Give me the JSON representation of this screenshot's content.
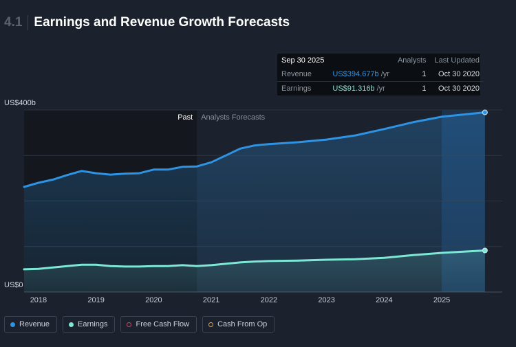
{
  "section": "4.1",
  "chart_data": {
    "type": "line",
    "title": "Earnings and Revenue Growth Forecasts",
    "x": [
      2017.75,
      2018,
      2018.25,
      2018.5,
      2018.75,
      2019,
      2019.25,
      2019.5,
      2019.75,
      2020,
      2020.25,
      2020.5,
      2020.75,
      2021,
      2021.25,
      2021.5,
      2021.75,
      2022,
      2022.5,
      2023,
      2023.5,
      2024,
      2024.5,
      2025,
      2025.75
    ],
    "xlim": [
      2017.75,
      2026.05
    ],
    "xticks": [
      2018,
      2019,
      2020,
      2021,
      2022,
      2023,
      2024,
      2025
    ],
    "ylim": [
      0,
      400
    ],
    "yticks": [
      {
        "value": 0,
        "label": "US$0"
      },
      {
        "value": 100,
        "label": null
      },
      {
        "value": 200,
        "label": null
      },
      {
        "value": 300,
        "label": null
      },
      {
        "value": 400,
        "label": "US$400b"
      }
    ],
    "grid": true,
    "past_label": "Past",
    "forecast_label": "Analysts Forecasts",
    "past_end": 2020.75,
    "series": [
      {
        "name": "Revenue",
        "color": "#2f93e4",
        "values": [
          231,
          240,
          247,
          257,
          266,
          261,
          258,
          260,
          261,
          269,
          269,
          275,
          276,
          285,
          300,
          315,
          322,
          325,
          329,
          335,
          344,
          358,
          373,
          385,
          394.677
        ]
      },
      {
        "name": "Earnings",
        "color": "#7ee8d6",
        "values": [
          50,
          51,
          54,
          57,
          60,
          60,
          57,
          56,
          56,
          57,
          57,
          59,
          57,
          59,
          62,
          65,
          67,
          68,
          69,
          71,
          72,
          75,
          81,
          86,
          91.316
        ]
      }
    ],
    "legend_extra": [
      {
        "name": "Free Cash Flow",
        "color": "#c8466e"
      },
      {
        "name": "Cash From Op",
        "color": "#e3a44a"
      }
    ],
    "tooltip": {
      "date": "Sep 30 2025",
      "columns": [
        "Analysts",
        "Last Updated"
      ],
      "rows": [
        {
          "name": "Revenue",
          "value": "US$394.677b",
          "unit": "/yr",
          "analysts": 1,
          "updated": "Oct 30 2020"
        },
        {
          "name": "Earnings",
          "value": "US$91.316b",
          "unit": "/yr",
          "analysts": 1,
          "updated": "Oct 30 2020"
        }
      ]
    }
  }
}
